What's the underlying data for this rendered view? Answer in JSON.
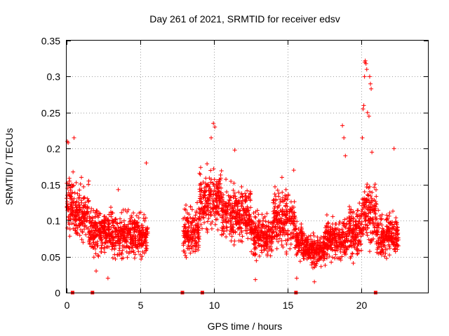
{
  "chart_data": {
    "type": "scatter",
    "title": "Day 261 of 2021, SRMTID for receiver edsv",
    "xlabel": "GPS time / hours",
    "ylabel": "SRMTID / TECUs",
    "xlim": [
      0,
      24.5
    ],
    "ylim": [
      0,
      0.35
    ],
    "x_ticks": [
      0,
      5,
      10,
      15,
      20
    ],
    "x_tick_labels": [
      "0",
      "5",
      "10",
      "15",
      "20"
    ],
    "y_ticks": [
      0,
      0.05,
      0.1,
      0.15,
      0.2,
      0.25,
      0.3,
      0.35
    ],
    "y_tick_labels": [
      "0",
      "0.05",
      "0.1",
      "0.15",
      "0.2",
      "0.25",
      "0.3",
      "0.35"
    ],
    "grid": true,
    "marker": "+",
    "series_color": "#ff0000",
    "segments": [
      {
        "x_start": 0.0,
        "x_end": 0.5,
        "mean": 0.12,
        "spread": 0.045
      },
      {
        "x_start": 0.5,
        "x_end": 1.5,
        "mean": 0.11,
        "spread": 0.04
      },
      {
        "x_start": 1.5,
        "x_end": 3.0,
        "mean": 0.085,
        "spread": 0.035
      },
      {
        "x_start": 3.0,
        "x_end": 5.5,
        "mean": 0.08,
        "spread": 0.035
      },
      {
        "x_start": 7.9,
        "x_end": 9.0,
        "mean": 0.085,
        "spread": 0.04
      },
      {
        "x_start": 9.0,
        "x_end": 10.5,
        "mean": 0.13,
        "spread": 0.05
      },
      {
        "x_start": 10.5,
        "x_end": 12.5,
        "mean": 0.11,
        "spread": 0.045
      },
      {
        "x_start": 12.5,
        "x_end": 14.0,
        "mean": 0.08,
        "spread": 0.035
      },
      {
        "x_start": 14.0,
        "x_end": 15.5,
        "mean": 0.1,
        "spread": 0.045
      },
      {
        "x_start": 15.5,
        "x_end": 16.0,
        "mean": 0.075,
        "spread": 0.03
      },
      {
        "x_start": 16.0,
        "x_end": 17.5,
        "mean": 0.06,
        "spread": 0.025
      },
      {
        "x_start": 17.5,
        "x_end": 19.0,
        "mean": 0.075,
        "spread": 0.035
      },
      {
        "x_start": 19.0,
        "x_end": 20.0,
        "mean": 0.085,
        "spread": 0.04
      },
      {
        "x_start": 20.0,
        "x_end": 21.0,
        "mean": 0.11,
        "spread": 0.05
      },
      {
        "x_start": 21.0,
        "x_end": 22.5,
        "mean": 0.08,
        "spread": 0.035
      }
    ],
    "outliers": [
      {
        "x": 0.05,
        "y": 0.21
      },
      {
        "x": 0.1,
        "y": 0.208
      },
      {
        "x": 0.5,
        "y": 0.215
      },
      {
        "x": 1.0,
        "y": 0.16
      },
      {
        "x": 1.5,
        "y": 0.155
      },
      {
        "x": 2.0,
        "y": 0.03
      },
      {
        "x": 2.8,
        "y": 0.02
      },
      {
        "x": 3.5,
        "y": 0.143
      },
      {
        "x": 5.4,
        "y": 0.18
      },
      {
        "x": 9.8,
        "y": 0.215
      },
      {
        "x": 9.95,
        "y": 0.235
      },
      {
        "x": 10.05,
        "y": 0.23
      },
      {
        "x": 11.4,
        "y": 0.198
      },
      {
        "x": 12.8,
        "y": 0.018
      },
      {
        "x": 14.6,
        "y": 0.16
      },
      {
        "x": 15.4,
        "y": 0.17
      },
      {
        "x": 15.6,
        "y": 0.02
      },
      {
        "x": 16.8,
        "y": 0.015
      },
      {
        "x": 18.7,
        "y": 0.232
      },
      {
        "x": 18.8,
        "y": 0.215
      },
      {
        "x": 18.9,
        "y": 0.19
      },
      {
        "x": 20.05,
        "y": 0.215
      },
      {
        "x": 20.1,
        "y": 0.255
      },
      {
        "x": 20.15,
        "y": 0.26
      },
      {
        "x": 20.2,
        "y": 0.3
      },
      {
        "x": 20.22,
        "y": 0.32
      },
      {
        "x": 20.25,
        "y": 0.322
      },
      {
        "x": 20.3,
        "y": 0.318
      },
      {
        "x": 20.35,
        "y": 0.31
      },
      {
        "x": 20.4,
        "y": 0.25
      },
      {
        "x": 20.55,
        "y": 0.3
      },
      {
        "x": 20.6,
        "y": 0.29
      },
      {
        "x": 20.65,
        "y": 0.283
      },
      {
        "x": 20.5,
        "y": 0.245
      },
      {
        "x": 20.7,
        "y": 0.195
      },
      {
        "x": 22.2,
        "y": 0.2
      }
    ],
    "baseline_markers_x": [
      0.4,
      1.75,
      7.85,
      9.2,
      15.55,
      20.95
    ]
  }
}
